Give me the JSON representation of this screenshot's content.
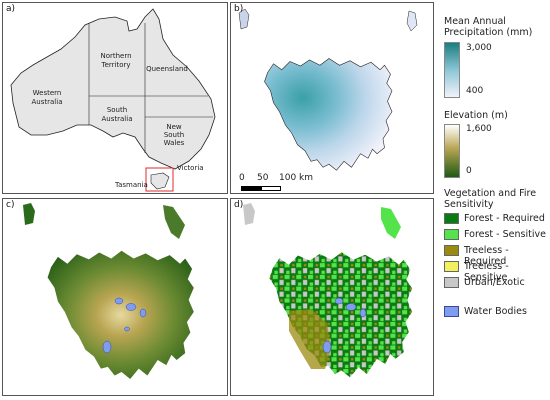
{
  "panels": {
    "a": {
      "label": "a)",
      "regions": [
        "Western Australia",
        "Northern Territory",
        "South Australia",
        "Queensland",
        "New South Wales",
        "Victoria",
        "Tasmania"
      ]
    },
    "b": {
      "label": "b)"
    },
    "c": {
      "label": "c)"
    },
    "d": {
      "label": "d)"
    }
  },
  "scalebar": {
    "ticks": [
      "0",
      "50",
      "100 km"
    ]
  },
  "legend": {
    "precip": {
      "title": "Mean Annual Precipitation (mm)",
      "max": "3,000",
      "min": "400",
      "color_low": "#f2f2fb",
      "color_high": "#1a7f80"
    },
    "elevation": {
      "title": "Elevation (m)",
      "max": "1,600",
      "min": "0",
      "color_low": "#1f5a13",
      "color_mid": "#b9a552",
      "color_high": "#ffffff"
    },
    "vegetation": {
      "title": "Vegetation and Fire Sensitivity",
      "items": [
        {
          "label": "Forest - Required",
          "color": "#0c7a12"
        },
        {
          "label": "Forest - Sensitive",
          "color": "#54e34a"
        },
        {
          "label": "Treeless - Required",
          "color": "#9b8a10"
        },
        {
          "label": "Treeless - Sensitive",
          "color": "#f2f05c"
        },
        {
          "label": "Urban/Exotic",
          "color": "#c8c8c8"
        }
      ]
    },
    "water": {
      "label": "Water Bodies",
      "color": "#7f9cf0"
    }
  }
}
